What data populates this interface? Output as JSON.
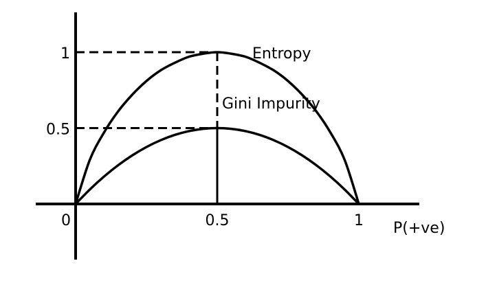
{
  "chart_data": {
    "type": "line",
    "title": "",
    "xlabel": "P(+ve)",
    "ylabel": "",
    "xlim": [
      0,
      1
    ],
    "ylim": [
      0,
      1
    ],
    "grid": false,
    "x_ticks": [
      {
        "value": 0,
        "label": "0"
      },
      {
        "value": 0.5,
        "label": "0.5"
      },
      {
        "value": 1,
        "label": "1"
      }
    ],
    "y_ticks": [
      {
        "value": 0.5,
        "label": "0.5"
      },
      {
        "value": 1,
        "label": "1"
      }
    ],
    "series": [
      {
        "name": "Entropy",
        "x": [
          0,
          0.05,
          0.1,
          0.15,
          0.2,
          0.25,
          0.3,
          0.35,
          0.4,
          0.45,
          0.5,
          0.55,
          0.6,
          0.65,
          0.7,
          0.75,
          0.8,
          0.85,
          0.9,
          0.95,
          1
        ],
        "y": [
          0,
          0.29,
          0.47,
          0.61,
          0.72,
          0.81,
          0.88,
          0.93,
          0.97,
          0.99,
          1,
          0.99,
          0.97,
          0.93,
          0.88,
          0.81,
          0.72,
          0.61,
          0.47,
          0.29,
          0
        ]
      },
      {
        "name": "Gini Impurity",
        "x": [
          0,
          0.05,
          0.1,
          0.15,
          0.2,
          0.25,
          0.3,
          0.35,
          0.4,
          0.45,
          0.5,
          0.55,
          0.6,
          0.65,
          0.7,
          0.75,
          0.8,
          0.85,
          0.9,
          0.95,
          1
        ],
        "y": [
          0,
          0.095,
          0.18,
          0.255,
          0.32,
          0.375,
          0.42,
          0.455,
          0.48,
          0.495,
          0.5,
          0.495,
          0.48,
          0.455,
          0.42,
          0.375,
          0.32,
          0.255,
          0.18,
          0.095,
          0
        ]
      }
    ],
    "reference_lines": [
      {
        "x": 0.5,
        "y": 1
      },
      {
        "x": 0.5,
        "y": 0.5
      }
    ]
  }
}
